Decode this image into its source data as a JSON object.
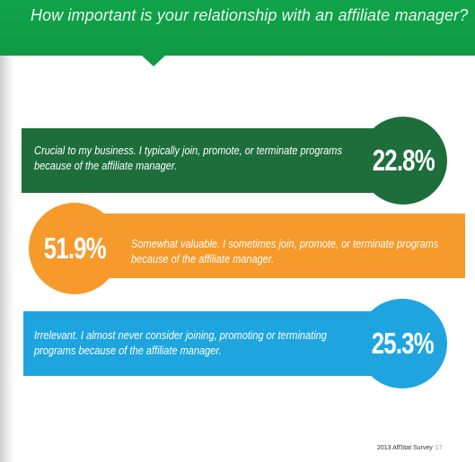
{
  "header": {
    "title": "How important is your relationship with an affiliate manager?"
  },
  "chart_data": {
    "type": "bar",
    "title": "How important is your relationship with an affiliate manager?",
    "categories": [
      "Crucial to my business. I typically join, promote, or terminate programs because of the affiliate manager.",
      "Somewhat valuable.  I sometimes join, promote, or terminate programs because of the affiliate manager.",
      "Irrelevant.  I almost never consider joining, promoting or terminating programs because of the affiliate manager."
    ],
    "values": [
      22.8,
      51.9,
      25.3
    ],
    "value_labels": [
      "22.8%",
      "51.9%",
      "25.3%"
    ],
    "colors": [
      "#1d6e3b",
      "#f69a2b",
      "#1ea5e0"
    ]
  },
  "footer": {
    "label": "2013 AffStat Survey",
    "page": "17"
  },
  "colors": {
    "header_green": "#10a349",
    "dark_green": "#1d6e3b",
    "orange": "#f69a2b",
    "blue": "#1ea5e0"
  }
}
